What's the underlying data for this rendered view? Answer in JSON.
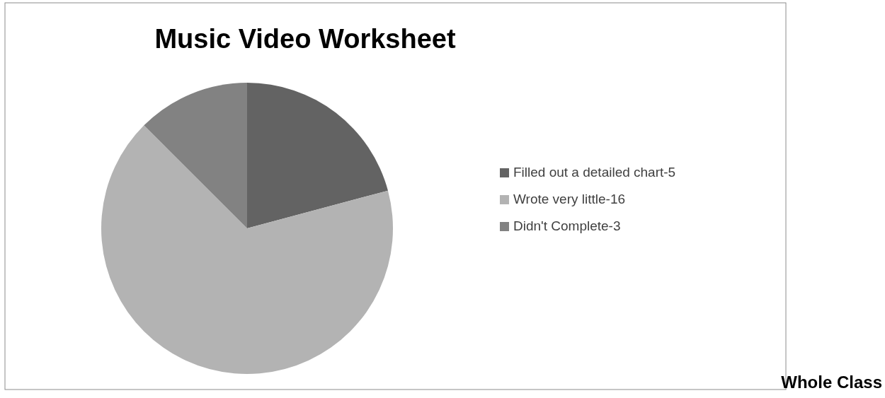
{
  "chart_data": {
    "type": "pie",
    "title": "Music Video Worksheet",
    "categories": [
      "Filled out a detailed chart-5",
      "Wrote very little-16",
      "Didn't Complete-3"
    ],
    "values": [
      20.83,
      66.67,
      12.5
    ],
    "colors": [
      "#636363",
      "#b3b3b3",
      "#828282"
    ],
    "legend": "right",
    "annotations": [
      "Whole Class"
    ]
  }
}
